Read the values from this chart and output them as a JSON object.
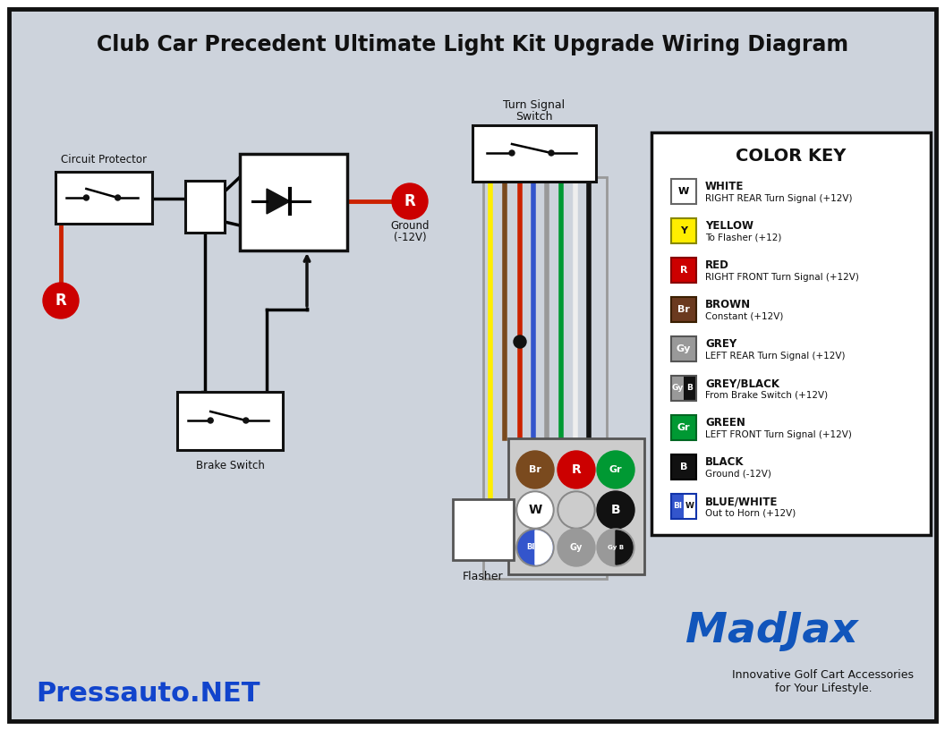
{
  "title": "Club Car Precedent Ultimate Light Kit Upgrade Wiring Diagram",
  "bg_color": "#cdd3dc",
  "border_color": "#111111",
  "footer_left": "Pressauto.NET",
  "color_key_title": "COLOR KEY",
  "color_key_entries": [
    {
      "label": "W",
      "bg": "#ffffff",
      "fg": "#000000",
      "border": "#666666",
      "name": "WHITE",
      "desc": "RIGHT REAR Turn Signal (+12V)",
      "split": false
    },
    {
      "label": "Y",
      "bg": "#ffee00",
      "fg": "#111111",
      "border": "#888800",
      "name": "YELLOW",
      "desc": "To Flasher (+12)",
      "split": false
    },
    {
      "label": "R",
      "bg": "#cc0000",
      "fg": "#ffffff",
      "border": "#880000",
      "name": "RED",
      "desc": "RIGHT FRONT Turn Signal (+12V)",
      "split": false
    },
    {
      "label": "Br",
      "bg": "#6b3a1f",
      "fg": "#ffffff",
      "border": "#3a1f00",
      "name": "BROWN",
      "desc": "Constant (+12V)",
      "split": false
    },
    {
      "label": "Gy",
      "bg": "#999999",
      "fg": "#ffffff",
      "border": "#555555",
      "name": "GREY",
      "desc": "LEFT REAR Turn Signal (+12V)",
      "split": false
    },
    {
      "label_l": "Gy",
      "label_r": "B",
      "bg_l": "#999999",
      "bg_r": "#111111",
      "fg_l": "#ffffff",
      "fg_r": "#ffffff",
      "border": "#555555",
      "name": "GREY/BLACK",
      "desc": "From Brake Switch (+12V)",
      "split": true
    },
    {
      "label": "Gr",
      "bg": "#009933",
      "fg": "#ffffff",
      "border": "#006622",
      "name": "GREEN",
      "desc": "LEFT FRONT Turn Signal (+12V)",
      "split": false
    },
    {
      "label": "B",
      "bg": "#111111",
      "fg": "#ffffff",
      "border": "#000000",
      "name": "BLACK",
      "desc": "Ground (-12V)",
      "split": false
    },
    {
      "label_l": "Bl",
      "label_r": "W",
      "bg_l": "#3355cc",
      "bg_r": "#ffffff",
      "fg_l": "#ffffff",
      "fg_r": "#111111",
      "border": "#1133aa",
      "name": "BLUE/WHITE",
      "desc": "Out to Horn (+12V)",
      "split": true
    }
  ],
  "wires": {
    "yellow": "#ffee00",
    "brown": "#7a4a1e",
    "red": "#cc2200",
    "green": "#009933",
    "white": "#eeeeee",
    "grey": "#999999",
    "blue": "#3355cc",
    "black": "#111111"
  }
}
